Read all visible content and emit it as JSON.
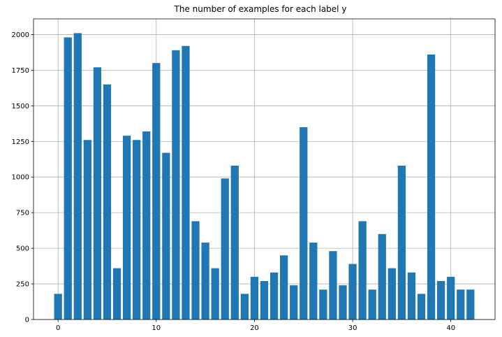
{
  "chart_data": {
    "type": "bar",
    "title": "The number of examples for each label y",
    "xlabel": "",
    "ylabel": "",
    "x": [
      0,
      1,
      2,
      3,
      4,
      5,
      6,
      7,
      8,
      9,
      10,
      11,
      12,
      13,
      14,
      15,
      16,
      17,
      18,
      19,
      20,
      21,
      22,
      23,
      24,
      25,
      26,
      27,
      28,
      29,
      30,
      31,
      32,
      33,
      34,
      35,
      36,
      37,
      38,
      39,
      40,
      41,
      42
    ],
    "values": [
      180,
      1980,
      2010,
      1260,
      1770,
      1650,
      360,
      1290,
      1260,
      1320,
      1800,
      1170,
      1890,
      1920,
      690,
      540,
      360,
      990,
      1080,
      180,
      300,
      270,
      330,
      450,
      240,
      1350,
      540,
      210,
      480,
      240,
      390,
      690,
      210,
      600,
      360,
      1080,
      330,
      180,
      1860,
      270,
      300,
      210,
      210
    ],
    "xlim": [
      -2.5,
      44.5
    ],
    "ylim": [
      0,
      2110
    ],
    "xticks": [
      0,
      10,
      20,
      30,
      40
    ],
    "xtick_labels": [
      "0",
      "10",
      "20",
      "30",
      "40"
    ],
    "yticks": [
      0,
      250,
      500,
      750,
      1000,
      1250,
      1500,
      1750,
      2000
    ],
    "ytick_labels": [
      "0",
      "250",
      "500",
      "750",
      "1000",
      "1250",
      "1500",
      "1750",
      "2000"
    ],
    "grid": true,
    "bar_color": "#1f77b4"
  }
}
